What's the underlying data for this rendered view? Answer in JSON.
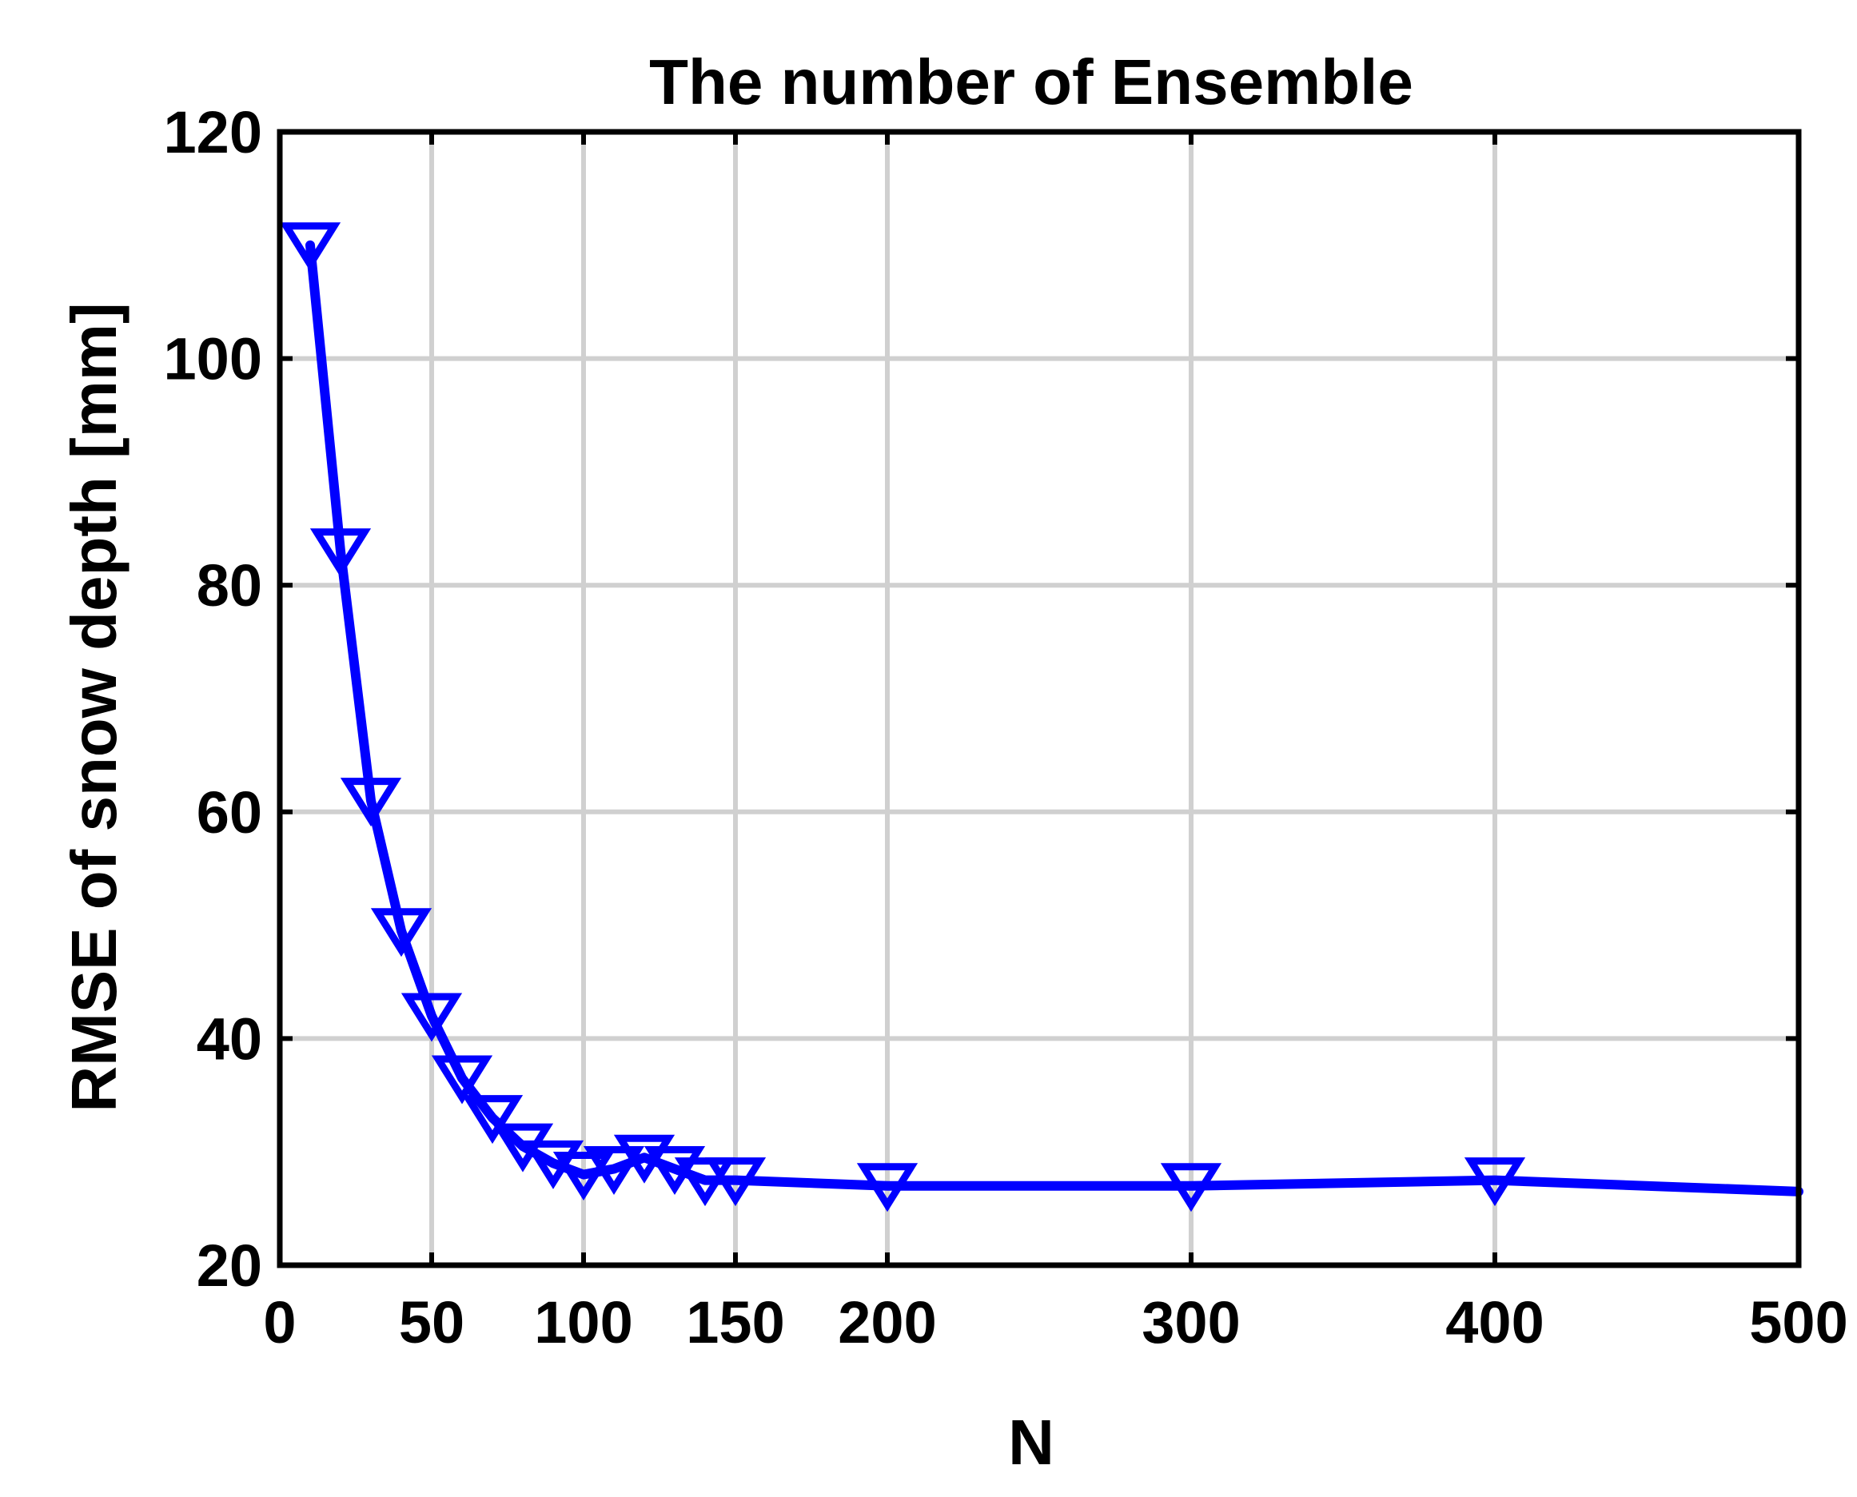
{
  "chart_data": {
    "type": "line",
    "title": "The number of Ensemble",
    "xlabel": "N",
    "ylabel": "RMSE of snow depth [mm]",
    "xlim": [
      0,
      500
    ],
    "ylim": [
      20,
      120
    ],
    "x_ticks": [
      0,
      50,
      100,
      150,
      200,
      300,
      400,
      500
    ],
    "y_ticks": [
      20,
      40,
      60,
      80,
      100,
      120
    ],
    "x_grid": [
      50,
      100,
      150,
      200,
      300,
      400
    ],
    "y_grid": [
      40,
      60,
      80,
      100
    ],
    "grid": true,
    "marker": "downward-triangle",
    "series": [
      {
        "color": "#0000ff",
        "x": [
          10,
          20,
          30,
          40,
          50,
          60,
          70,
          80,
          90,
          100,
          110,
          120,
          130,
          140,
          150,
          200,
          300,
          400,
          500
        ],
        "y": [
          110,
          83,
          61,
          49.5,
          42,
          36.5,
          33,
          30.5,
          29,
          28,
          28.5,
          29.5,
          28.5,
          27.5,
          27.5,
          27,
          27,
          27.5,
          26.5
        ],
        "marker_x": [
          10,
          20,
          30,
          40,
          50,
          60,
          70,
          80,
          90,
          100,
          110,
          120,
          130,
          140,
          150,
          200,
          300,
          400
        ]
      }
    ]
  }
}
